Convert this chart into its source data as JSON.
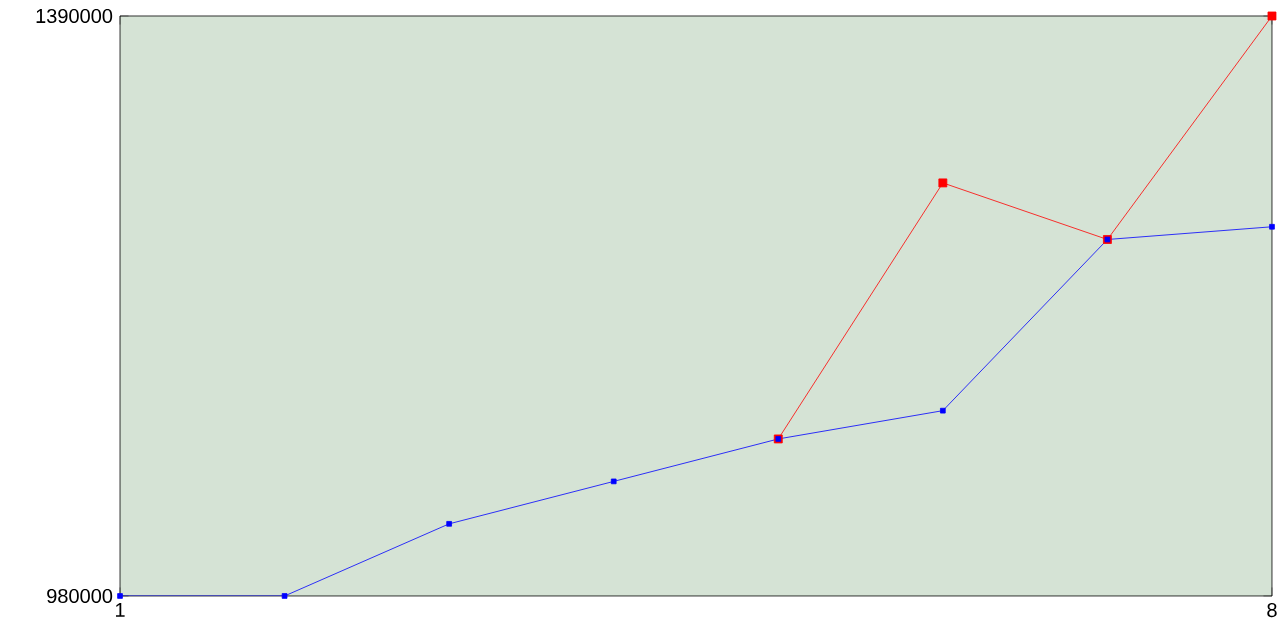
{
  "chart_data": {
    "type": "line",
    "x": [
      1,
      2,
      3,
      4,
      5,
      6,
      7,
      8
    ],
    "series": [
      {
        "color": "#ff0000",
        "values": [
          null,
          null,
          null,
          null,
          1091000,
          1272000,
          1232000,
          1390000
        ]
      },
      {
        "color": "#0000ff",
        "values": [
          980000,
          980000,
          1031000,
          1061000,
          1091000,
          1111000,
          1232000,
          1241000
        ]
      }
    ],
    "xlim": [
      1,
      8
    ],
    "xticks": [
      1,
      8
    ],
    "ylim": [
      980000,
      1390000
    ],
    "yticks": [
      980000,
      1390000
    ],
    "marker": "square",
    "line_style": "solid"
  }
}
